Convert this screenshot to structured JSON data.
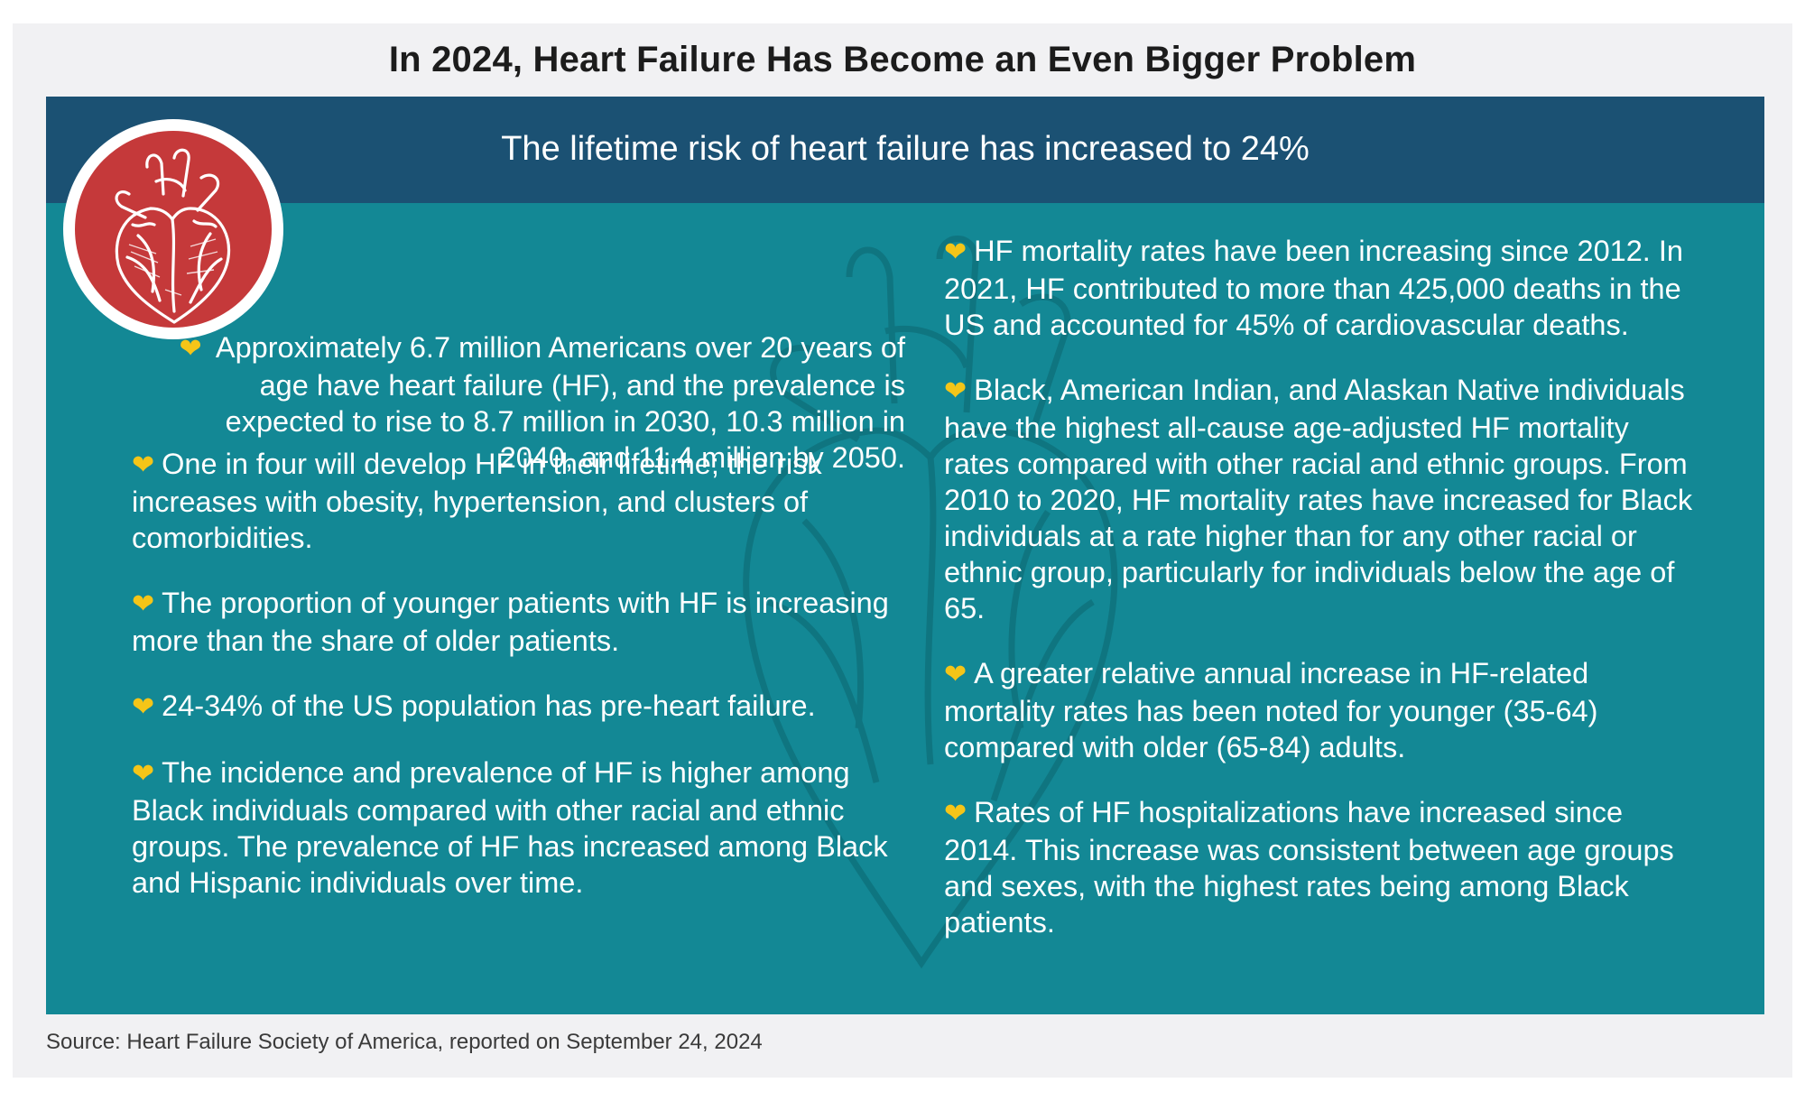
{
  "title": "In 2024, Heart Failure Has Become an Even Bigger Problem",
  "banner": "The lifetime risk of heart failure has increased to 24%",
  "bullet_icon": "heart-icon",
  "accent_colors": {
    "banner": "#1b5173",
    "panel": "#138895",
    "bullet": "#f5c518",
    "badge": "#c5393a"
  },
  "left_bullets": [
    "Approximately 6.7 million Americans over 20 years of age have heart failure (HF), and the prevalence is expected to rise to 8.7 million in 2030, 10.3 million in 2040, and 11.4 million by 2050.",
    "One in four will develop HF in their lifetime; the risk increases with obesity, hypertension, and clusters of comorbidities.",
    "The proportion of younger patients with HF is increasing more than the share of older patients.",
    "24-34% of the US population has pre-heart failure.",
    "The incidence and prevalence of HF is higher among Black individuals compared with other racial and ethnic groups. The prevalence of HF has increased among Black and Hispanic individuals over time."
  ],
  "right_bullets": [
    "HF mortality rates have been increasing since 2012. In 2021, HF contributed to more than 425,000 deaths in the US and accounted for 45% of cardiovascular deaths.",
    "Black, American Indian, and Alaskan Native individuals have the highest all-cause age-adjusted HF mortality rates compared with other racial and ethnic groups. From 2010 to 2020, HF mortality rates have increased for Black individuals at a rate higher than for any other racial or ethnic group, particularly for individuals below the age of 65.",
    "A greater relative annual increase in HF-related mortality rates has been noted for younger (35-64) compared with older (65-84) adults.",
    "Rates of HF hospitalizations have increased since 2014. This increase was consistent between age groups and sexes, with the highest rates being among Black patients."
  ],
  "source": "Source: Heart Failure Society of America, reported on September 24, 2024"
}
